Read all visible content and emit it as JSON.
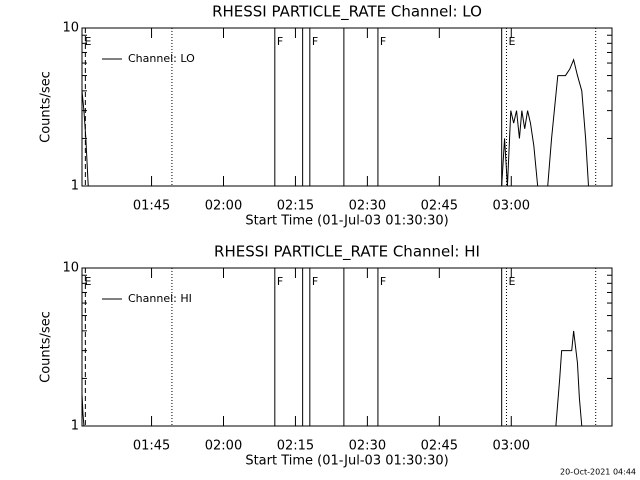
{
  "chart_data": [
    {
      "type": "line",
      "title": "RHESSI PARTICLE_RATE Channel: LO",
      "xlabel": "Start Time (01-Jul-03 01:30:30)",
      "ylabel": "Counts/sec",
      "ylog": true,
      "ylim": [
        1,
        10
      ],
      "yticks": [
        1,
        10
      ],
      "yminor": [
        2,
        3,
        4,
        5,
        6,
        7,
        8,
        9
      ],
      "xlim": [
        0.5,
        111
      ],
      "xticks": [
        {
          "value": 15,
          "label": "01:45"
        },
        {
          "value": 30,
          "label": "02:00"
        },
        {
          "value": 45,
          "label": "02:15"
        },
        {
          "value": 60,
          "label": "02:30"
        },
        {
          "value": 75,
          "label": "02:45"
        },
        {
          "value": 90,
          "label": "03:00"
        }
      ],
      "legend": "upper left",
      "series": [
        {
          "name": "Channel: LO",
          "color": "#000000",
          "x": [
            0.5,
            0.9,
            1.3,
            1.8,
            2.0,
            88.0,
            88.6,
            89.2,
            89.9,
            90.5,
            91.1,
            91.7,
            92.2,
            92.8,
            93.4,
            94.0,
            94.7,
            95.5,
            96.5,
            97.6,
            98.4,
            99.7,
            101.3,
            102.2,
            103.0,
            103.8,
            104.7,
            105.5,
            106.1
          ],
          "values": [
            4,
            3,
            2,
            1,
            null,
            1,
            2,
            1,
            3,
            2.5,
            3,
            2,
            3,
            2.3,
            3,
            2.5,
            1.8,
            1,
            null,
            1,
            2,
            5,
            5,
            5.5,
            6.3,
            5,
            4,
            2,
            1
          ]
        }
      ],
      "vlines": [
        {
          "x": 1.2,
          "style": "dashed"
        },
        {
          "x": 19.25,
          "style": "dotted"
        },
        {
          "x": 40.7,
          "style": "solid"
        },
        {
          "x": 46.5,
          "style": "solid"
        },
        {
          "x": 48,
          "style": "solid"
        },
        {
          "x": 55.1,
          "style": "solid"
        },
        {
          "x": 62.2,
          "style": "solid"
        },
        {
          "x": 88,
          "style": "solid"
        },
        {
          "x": 89,
          "style": "dotted"
        },
        {
          "x": 107.6,
          "style": "dotted"
        }
      ],
      "flags": [
        {
          "x": 0.6,
          "label": "E"
        },
        {
          "x": 40.7,
          "label": "F"
        },
        {
          "x": 48,
          "label": "F"
        },
        {
          "x": 62.2,
          "label": "F"
        },
        {
          "x": 89,
          "label": "E"
        }
      ]
    },
    {
      "type": "line",
      "title": "RHESSI PARTICLE_RATE Channel: HI",
      "xlabel": "Start Time (01-Jul-03 01:30:30)",
      "ylabel": "Counts/sec",
      "ylog": true,
      "ylim": [
        1,
        10
      ],
      "yticks": [
        1,
        10
      ],
      "yminor": [
        2,
        3,
        4,
        5,
        6,
        7,
        8,
        9
      ],
      "xlim": [
        0.5,
        111
      ],
      "xticks": [
        {
          "value": 15,
          "label": "01:45"
        },
        {
          "value": 30,
          "label": "02:00"
        },
        {
          "value": 45,
          "label": "02:15"
        },
        {
          "value": 60,
          "label": "02:30"
        },
        {
          "value": 75,
          "label": "02:45"
        },
        {
          "value": 90,
          "label": "03:00"
        }
      ],
      "legend": "upper left",
      "series": [
        {
          "name": "Channel: HI",
          "color": "#000000",
          "x": [
            0.5,
            0.7,
            0.9,
            2.0,
            99.3,
            100.1,
            100.5,
            101.3,
            102.6,
            103.0,
            103.8,
            104.2,
            104.7
          ],
          "values": [
            1.6,
            1.2,
            1,
            null,
            1,
            2,
            3,
            3,
            3,
            4,
            2.5,
            1.5,
            1
          ]
        }
      ],
      "vlines": [
        {
          "x": 1.2,
          "style": "dashed"
        },
        {
          "x": 19.25,
          "style": "dotted"
        },
        {
          "x": 40.7,
          "style": "solid"
        },
        {
          "x": 46.5,
          "style": "solid"
        },
        {
          "x": 48,
          "style": "solid"
        },
        {
          "x": 55.1,
          "style": "solid"
        },
        {
          "x": 62.2,
          "style": "solid"
        },
        {
          "x": 88,
          "style": "solid"
        },
        {
          "x": 89,
          "style": "dotted"
        },
        {
          "x": 107.6,
          "style": "dotted"
        }
      ],
      "flags": [
        {
          "x": 0.6,
          "label": "E"
        },
        {
          "x": 40.7,
          "label": "F"
        },
        {
          "x": 48,
          "label": "F"
        },
        {
          "x": 62.2,
          "label": "F"
        },
        {
          "x": 89,
          "label": "E"
        }
      ]
    }
  ],
  "footer": "20-Oct-2021 04:44"
}
